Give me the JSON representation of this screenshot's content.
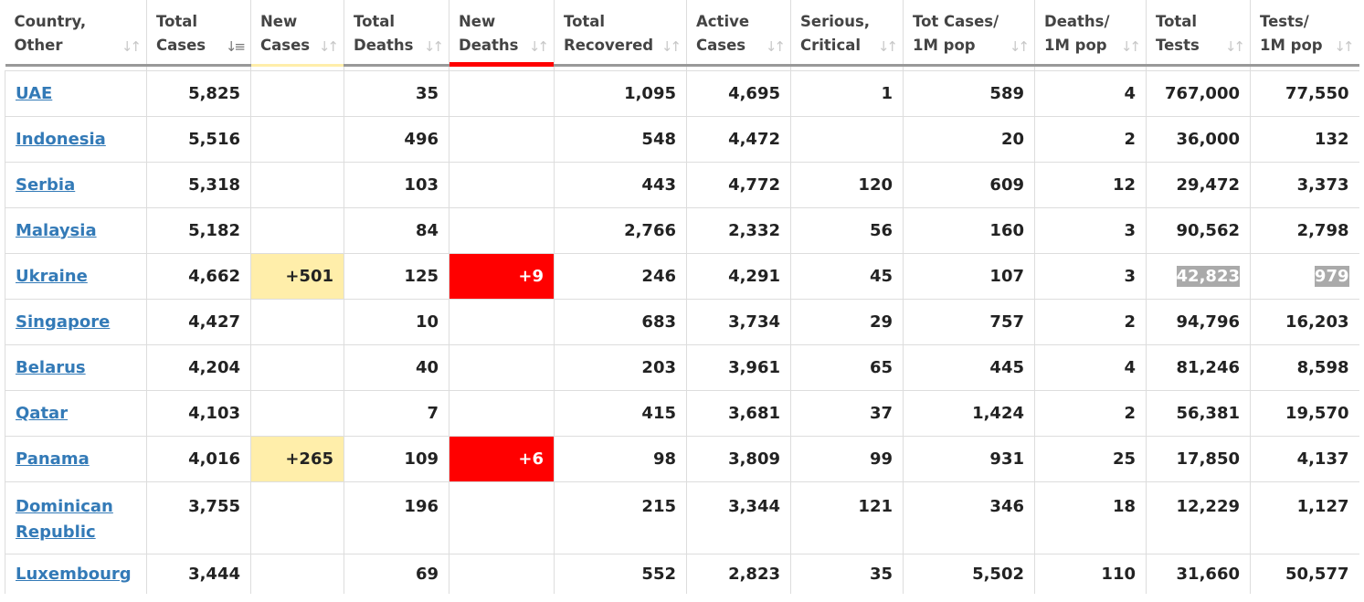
{
  "headers": [
    {
      "label": "Country,\nOther",
      "sort": "inactive"
    },
    {
      "label": "Total\nCases",
      "sort": "active"
    },
    {
      "label": "New\nCases",
      "sort": "inactive"
    },
    {
      "label": "Total\nDeaths",
      "sort": "inactive"
    },
    {
      "label": "New\nDeaths",
      "sort": "inactive"
    },
    {
      "label": "Total\nRecovered",
      "sort": "inactive"
    },
    {
      "label": "Active\nCases",
      "sort": "inactive"
    },
    {
      "label": "Serious,\nCritical",
      "sort": "inactive"
    },
    {
      "label": "Tot Cases/\n1M pop",
      "sort": "inactive"
    },
    {
      "label": "Deaths/\n1M pop",
      "sort": "inactive"
    },
    {
      "label": "Total\nTests",
      "sort": "inactive"
    },
    {
      "label": "Tests/\n1M pop",
      "sort": "inactive"
    }
  ],
  "sort_icon": "sort-arrows-icon",
  "colors": {
    "link": "#337ab7",
    "new_cases_highlight": "#ffeeaa",
    "new_deaths_highlight": "#ff0000",
    "stale_tests_highlight": "#aaaaaa",
    "header_rule": "#999999",
    "grid": "#dddddd"
  },
  "rows": [
    {
      "country": "UAE",
      "total_cases": "5,825",
      "new_cases": "",
      "total_deaths": "35",
      "new_deaths": "",
      "total_recovered": "1,095",
      "active_cases": "4,695",
      "serious_critical": "1",
      "tot_cases_1m": "589",
      "deaths_1m": "4",
      "total_tests": "767,000",
      "tests_1m": "77,550"
    },
    {
      "country": "Indonesia",
      "total_cases": "5,516",
      "new_cases": "",
      "total_deaths": "496",
      "new_deaths": "",
      "total_recovered": "548",
      "active_cases": "4,472",
      "serious_critical": "",
      "tot_cases_1m": "20",
      "deaths_1m": "2",
      "total_tests": "36,000",
      "tests_1m": "132"
    },
    {
      "country": "Serbia",
      "total_cases": "5,318",
      "new_cases": "",
      "total_deaths": "103",
      "new_deaths": "",
      "total_recovered": "443",
      "active_cases": "4,772",
      "serious_critical": "120",
      "tot_cases_1m": "609",
      "deaths_1m": "12",
      "total_tests": "29,472",
      "tests_1m": "3,373"
    },
    {
      "country": "Malaysia",
      "total_cases": "5,182",
      "new_cases": "",
      "total_deaths": "84",
      "new_deaths": "",
      "total_recovered": "2,766",
      "active_cases": "2,332",
      "serious_critical": "56",
      "tot_cases_1m": "160",
      "deaths_1m": "3",
      "total_tests": "90,562",
      "tests_1m": "2,798"
    },
    {
      "country": "Ukraine",
      "total_cases": "4,662",
      "new_cases": "+501",
      "total_deaths": "125",
      "new_deaths": "+9",
      "total_recovered": "246",
      "active_cases": "4,291",
      "serious_critical": "45",
      "tot_cases_1m": "107",
      "deaths_1m": "3",
      "total_tests": "42,823",
      "tests_1m": "979"
    },
    {
      "country": "Singapore",
      "total_cases": "4,427",
      "new_cases": "",
      "total_deaths": "10",
      "new_deaths": "",
      "total_recovered": "683",
      "active_cases": "3,734",
      "serious_critical": "29",
      "tot_cases_1m": "757",
      "deaths_1m": "2",
      "total_tests": "94,796",
      "tests_1m": "16,203"
    },
    {
      "country": "Belarus",
      "total_cases": "4,204",
      "new_cases": "",
      "total_deaths": "40",
      "new_deaths": "",
      "total_recovered": "203",
      "active_cases": "3,961",
      "serious_critical": "65",
      "tot_cases_1m": "445",
      "deaths_1m": "4",
      "total_tests": "81,246",
      "tests_1m": "8,598"
    },
    {
      "country": "Qatar",
      "total_cases": "4,103",
      "new_cases": "",
      "total_deaths": "7",
      "new_deaths": "",
      "total_recovered": "415",
      "active_cases": "3,681",
      "serious_critical": "37",
      "tot_cases_1m": "1,424",
      "deaths_1m": "2",
      "total_tests": "56,381",
      "tests_1m": "19,570"
    },
    {
      "country": "Panama",
      "total_cases": "4,016",
      "new_cases": "+265",
      "total_deaths": "109",
      "new_deaths": "+6",
      "total_recovered": "98",
      "active_cases": "3,809",
      "serious_critical": "99",
      "tot_cases_1m": "931",
      "deaths_1m": "25",
      "total_tests": "17,850",
      "tests_1m": "4,137"
    },
    {
      "country": "Dominican\nRepublic",
      "total_cases": "3,755",
      "new_cases": "",
      "total_deaths": "196",
      "new_deaths": "",
      "total_recovered": "215",
      "active_cases": "3,344",
      "serious_critical": "121",
      "tot_cases_1m": "346",
      "deaths_1m": "18",
      "total_tests": "12,229",
      "tests_1m": "1,127"
    },
    {
      "country": "Luxembourg",
      "total_cases": "3,444",
      "new_cases": "",
      "total_deaths": "69",
      "new_deaths": "",
      "total_recovered": "552",
      "active_cases": "2,823",
      "serious_critical": "35",
      "tot_cases_1m": "5,502",
      "deaths_1m": "110",
      "total_tests": "31,660",
      "tests_1m": "50,577"
    }
  ]
}
